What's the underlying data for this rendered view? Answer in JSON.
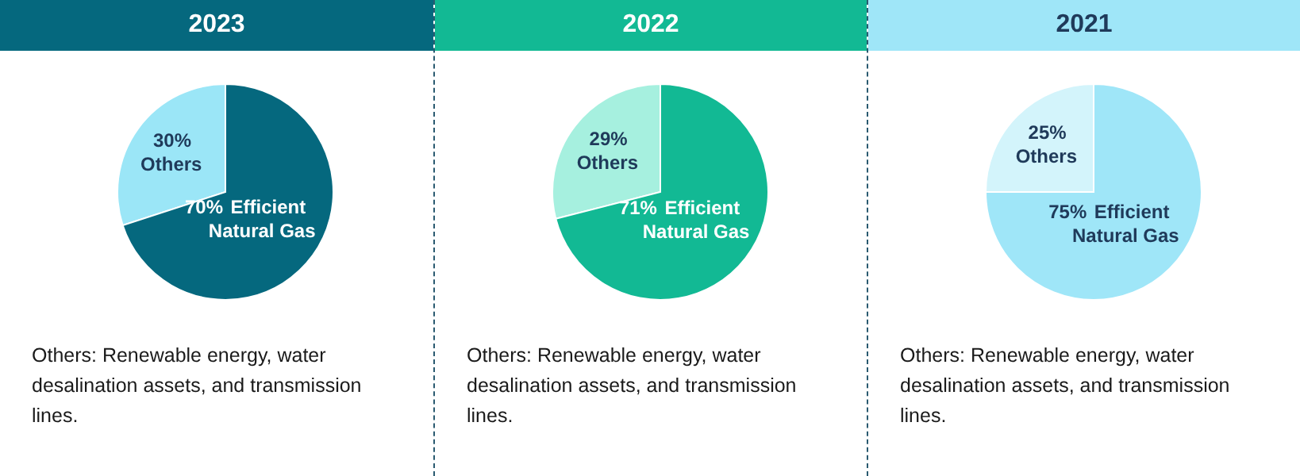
{
  "chart_data": [
    {
      "type": "pie",
      "title": "2023",
      "categories": [
        "Others",
        "Efficient Natural Gas"
      ],
      "values": [
        30,
        70
      ],
      "colors": [
        "#9be6f7",
        "#05687e"
      ],
      "value_labels": [
        "30%",
        "70%"
      ],
      "annotations": [
        "Others: Renewable energy, water desalination assets, and transmission lines."
      ]
    },
    {
      "type": "pie",
      "title": "2022",
      "categories": [
        "Others",
        "Efficient Natural Gas"
      ],
      "values": [
        29,
        71
      ],
      "colors": [
        "#a6f0df",
        "#12b994"
      ],
      "value_labels": [
        "29%",
        "71%"
      ],
      "annotations": [
        "Others: Renewable energy, water desalination assets, and transmission lines."
      ]
    },
    {
      "type": "pie",
      "title": "2021",
      "categories": [
        "Others",
        "Efficient Natural Gas"
      ],
      "values": [
        25,
        75
      ],
      "colors": [
        "#d3f4fb",
        "#9fe6f8"
      ],
      "value_labels": [
        "25%",
        "75%"
      ],
      "annotations": [
        "Others: Renewable energy, water desalination assets, and transmission lines."
      ]
    }
  ]
}
